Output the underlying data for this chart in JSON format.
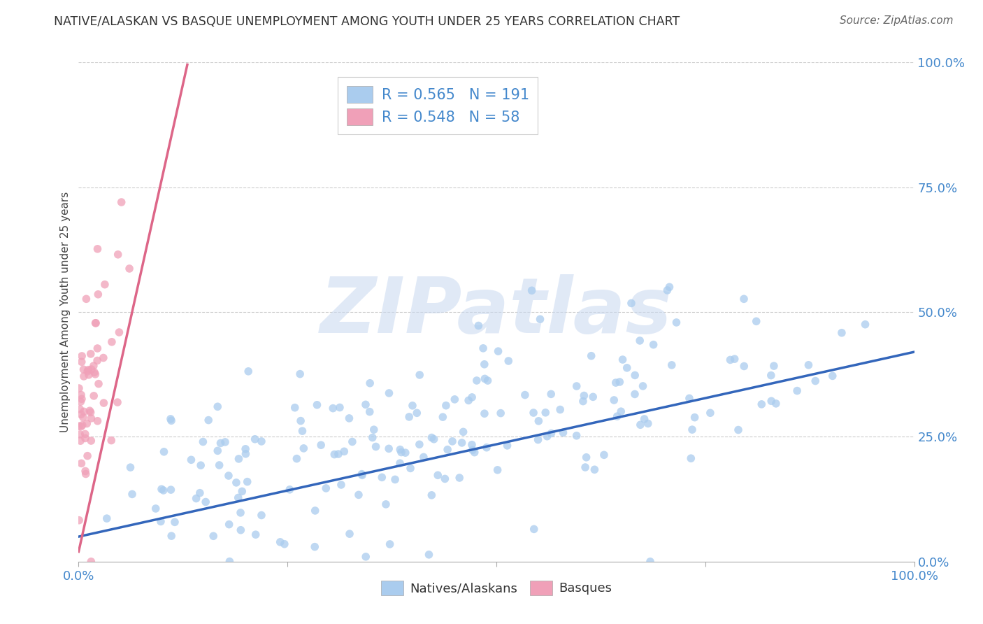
{
  "title": "NATIVE/ALASKAN VS BASQUE UNEMPLOYMENT AMONG YOUTH UNDER 25 YEARS CORRELATION CHART",
  "source": "Source: ZipAtlas.com",
  "ylabel": "Unemployment Among Youth under 25 years",
  "ylabel_right_ticks": [
    "100.0%",
    "75.0%",
    "50.0%",
    "25.0%",
    "0.0%"
  ],
  "ylabel_right_vals": [
    1.0,
    0.75,
    0.5,
    0.25,
    0.0
  ],
  "watermark": "ZIPatlas",
  "legend_label1": "Natives/Alaskans",
  "legend_label2": "Basques",
  "R1": 0.565,
  "N1": 191,
  "R2": 0.548,
  "N2": 58,
  "color_blue": "#aaccee",
  "color_pink": "#f0a0b8",
  "color_line_blue": "#3366bb",
  "color_line_pink": "#dd6688",
  "color_text_blue": "#4488cc",
  "background": "#ffffff",
  "title_color": "#333333",
  "source_color": "#666666",
  "seed": 12345,
  "n_blue": 191,
  "n_pink": 58
}
